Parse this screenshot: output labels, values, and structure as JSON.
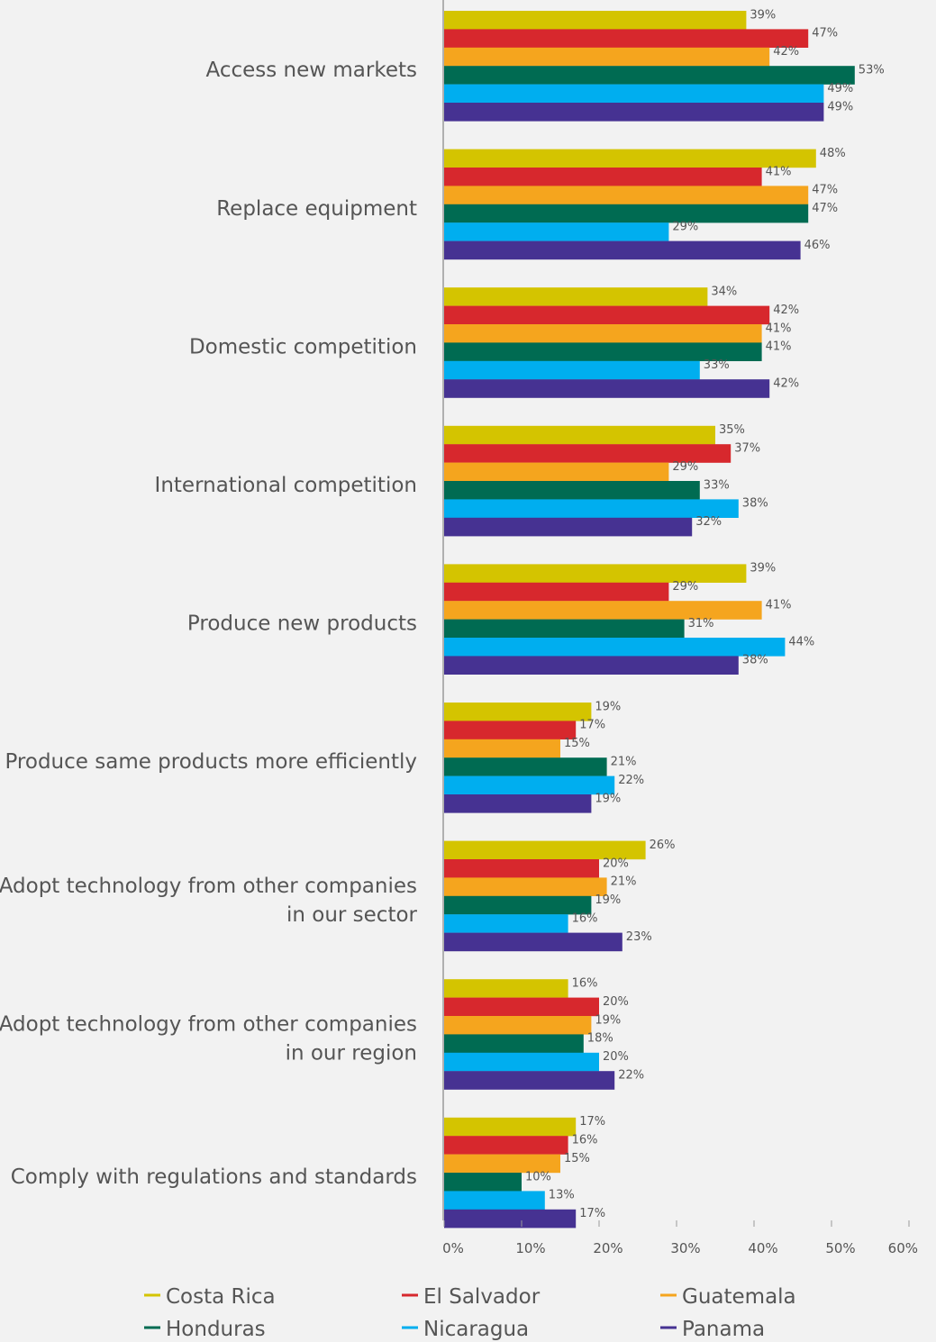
{
  "chart_data": {
    "type": "bar",
    "orientation": "horizontal",
    "categories": [
      "Access new markets",
      "Replace equipment",
      "Domestic competition",
      "International competition",
      "Produce new products",
      "Produce same products more efficiently",
      "Adopt technology from other companies in our sector",
      "Adopt technology from other companies in our region",
      "Comply  with regulations and standards"
    ],
    "category_lines": [
      [
        "Access new markets"
      ],
      [
        "Replace equipment"
      ],
      [
        "Domestic competition"
      ],
      [
        "International competition"
      ],
      [
        "Produce new products"
      ],
      [
        "Produce same products more efficiently"
      ],
      [
        "Adopt technology from other companies",
        "in our sector"
      ],
      [
        "Adopt technology from other companies",
        "in our region"
      ],
      [
        "Comply  with regulations and standards"
      ]
    ],
    "series": [
      {
        "name": "Costa Rica",
        "color": "#d4c400",
        "values": [
          39,
          48,
          34,
          35,
          39,
          19,
          26,
          16,
          17
        ]
      },
      {
        "name": "El Salvador",
        "color": "#d7282d",
        "values": [
          47,
          41,
          42,
          37,
          29,
          17,
          20,
          20,
          16
        ]
      },
      {
        "name": "Guatemala",
        "color": "#f5a51e",
        "values": [
          42,
          47,
          41,
          29,
          41,
          15,
          21,
          19,
          15
        ]
      },
      {
        "name": "Honduras",
        "color": "#006b52",
        "values": [
          53,
          47,
          41,
          33,
          31,
          21,
          19,
          18,
          10
        ]
      },
      {
        "name": "Nicaragua",
        "color": "#00aeef",
        "values": [
          49,
          29,
          33,
          38,
          44,
          22,
          16,
          20,
          13
        ]
      },
      {
        "name": "Panama",
        "color": "#463292",
        "values": [
          49,
          46,
          42,
          32,
          38,
          19,
          23,
          22,
          17
        ]
      }
    ],
    "xlim": [
      0,
      60
    ],
    "xticks": [
      "0%",
      "10%",
      "20%",
      "30%",
      "40%",
      "50%",
      "60%"
    ],
    "value_suffix": "%",
    "grid": false,
    "legend_position": "bottom"
  }
}
